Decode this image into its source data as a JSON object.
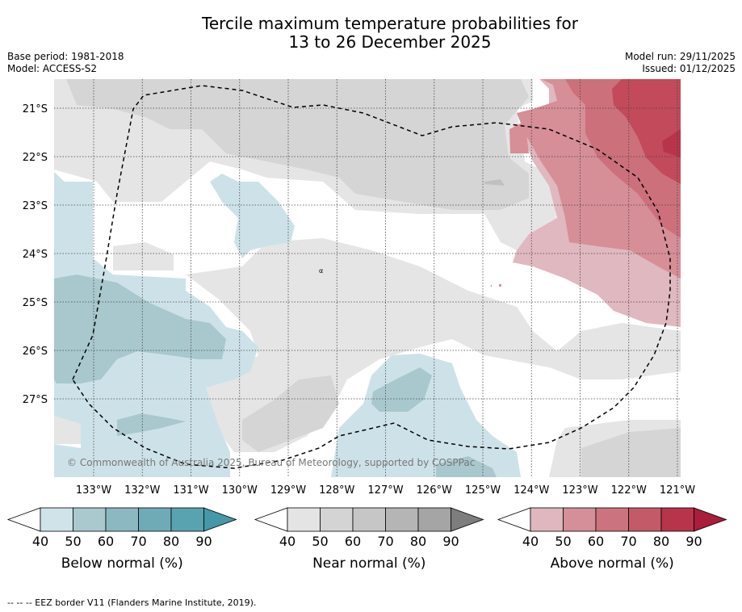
{
  "title": {
    "line1": "Tercile maximum temperature probabilities for",
    "line2": "13 to 26 December 2025"
  },
  "info": {
    "base_period": "Base period: 1981-2018",
    "model": "Model: ACCESS-S2",
    "model_run": "Model run: 29/11/2025",
    "issued": "Issued: 01/12/2025"
  },
  "map": {
    "lat_labels": [
      "21°S",
      "22°S",
      "23°S",
      "24°S",
      "25°S",
      "26°S",
      "27°S"
    ],
    "lon_labels": [
      "133°W",
      "132°W",
      "131°W",
      "130°W",
      "129°W",
      "128°W",
      "127°W",
      "126°W",
      "125°W",
      "124°W",
      "123°W",
      "122°W",
      "121°W"
    ],
    "copyright": "© Commonwealth of Australia 2025, Bureau of Meteorology, supported by COSPPac",
    "colors": {
      "near_40": "#e5e5e5",
      "near_50": "#d5d5d5",
      "below_40": "#cde2e8",
      "below_50": "#a8c8cd",
      "above_40": "#e0b8bf",
      "above_50": "#d68e97",
      "above_60": "#cc707c",
      "above_70": "#c24a5a",
      "eez_line": "#000000"
    }
  },
  "colorbars": [
    {
      "label": "Below normal (%)",
      "ticks": [
        "40",
        "50",
        "60",
        "70",
        "80",
        "90"
      ],
      "colors": [
        "#cfe3e8",
        "#a9c9ce",
        "#8cb9c1",
        "#6fabb7",
        "#59a3b0",
        "#4498a8"
      ]
    },
    {
      "label": "Near normal (%)",
      "ticks": [
        "40",
        "50",
        "60",
        "70",
        "80",
        "90"
      ],
      "colors": [
        "#e4e4e4",
        "#d4d4d4",
        "#c6c6c6",
        "#b5b5b5",
        "#a5a5a5",
        "#7d7d7d"
      ]
    },
    {
      "label": "Above normal (%)",
      "ticks": [
        "40",
        "50",
        "60",
        "70",
        "80",
        "90"
      ],
      "colors": [
        "#e0b7be",
        "#d48f98",
        "#cb737e",
        "#c25a68",
        "#b8344a",
        "#a81e3b"
      ]
    }
  ],
  "footer": {
    "eez_note": "--  --  -- EEZ border V11 (Flanders Marine Institute, 2019)."
  }
}
